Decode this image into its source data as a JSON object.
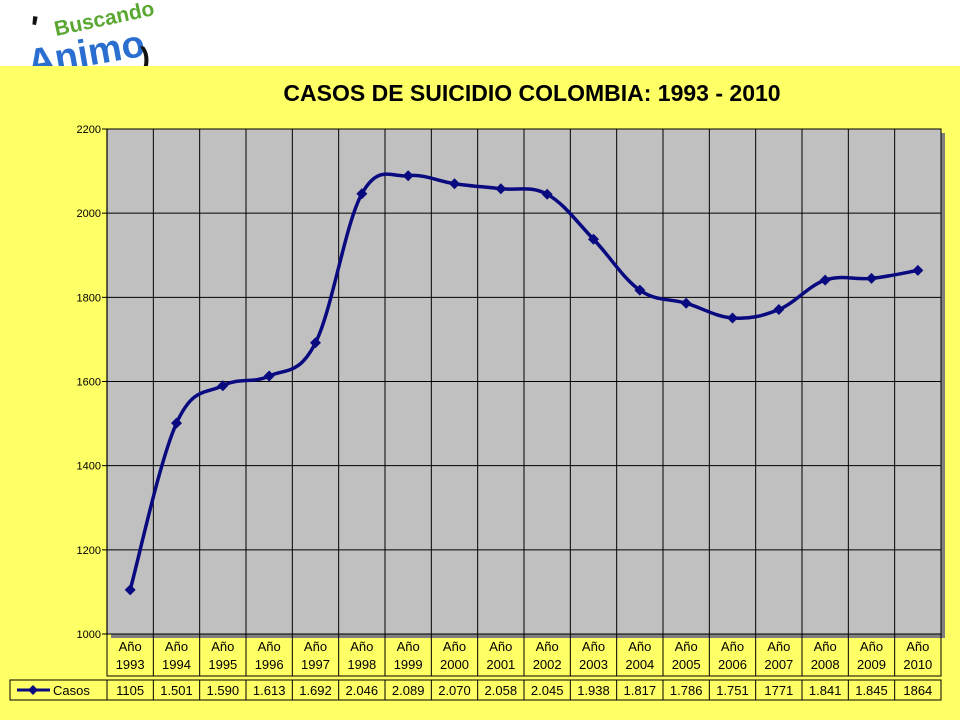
{
  "logo": {
    "top_text": "Buscando",
    "main_text": "Animo",
    "colors": {
      "blue": "#2a6fd0",
      "green": "#5aa832",
      "black": "#111111"
    }
  },
  "chart_data": {
    "type": "line",
    "title": "CASOS DE SUICIDIO COLOMBIA: 1993 - 2010",
    "xlabel": "",
    "ylabel": "",
    "ylim": [
      1000,
      2200
    ],
    "yticks": [
      "2200",
      "2000",
      "1800",
      "1600",
      "1400",
      "1200",
      "1000"
    ],
    "categories": [
      [
        "Año",
        "1993"
      ],
      [
        "Año",
        "1994"
      ],
      [
        "Año",
        "1995"
      ],
      [
        "Año",
        "1996"
      ],
      [
        "Año",
        "1997"
      ],
      [
        "Año",
        "1998"
      ],
      [
        "Año",
        "1999"
      ],
      [
        "Año",
        "2000"
      ],
      [
        "Año",
        "2001"
      ],
      [
        "Año",
        "2002"
      ],
      [
        "Año",
        "2003"
      ],
      [
        "Año",
        "2004"
      ],
      [
        "Año",
        "2005"
      ],
      [
        "Año",
        "2006"
      ],
      [
        "Año",
        "2007"
      ],
      [
        "Año",
        "2008"
      ],
      [
        "Año",
        "2009"
      ],
      [
        "Año",
        "2010"
      ]
    ],
    "series": [
      {
        "name": "Casos",
        "values": [
          1105,
          1501,
          1590,
          1613,
          1692,
          2046,
          2089,
          2070,
          2058,
          2045,
          1938,
          1817,
          1786,
          1751,
          1771,
          1841,
          1845,
          1864
        ],
        "value_labels": [
          "1105",
          "1.501",
          "1.590",
          "1.613",
          "1.692",
          "2.046",
          "2.089",
          "2.070",
          "2.058",
          "2.045",
          "1.938",
          "1.817",
          "1.786",
          "1.751",
          "1771",
          "1.841",
          "1.845",
          "1864"
        ]
      }
    ],
    "grid": true,
    "legend": "data-table",
    "colors": {
      "line": "#0a0a80",
      "plot_bg": "#c0c0c0",
      "slide_bg": "#ffff66",
      "grid": "#000000"
    }
  }
}
